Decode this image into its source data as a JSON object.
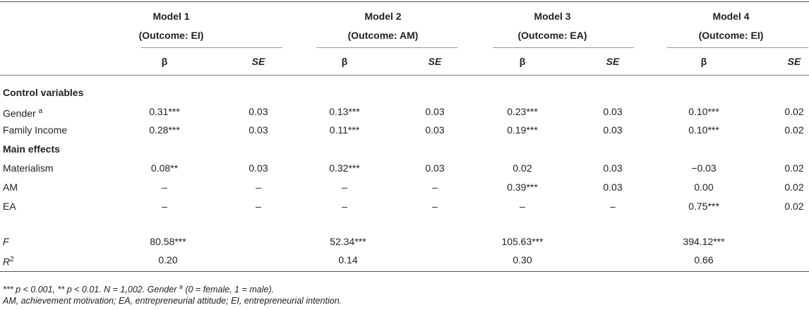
{
  "models": [
    {
      "name": "Model 1",
      "outcome": "(Outcome: EI)"
    },
    {
      "name": "Model 2",
      "outcome": "(Outcome: AM)"
    },
    {
      "name": "Model 3",
      "outcome": "(Outcome: EA)"
    },
    {
      "name": "Model 4",
      "outcome": "(Outcome: EI)"
    }
  ],
  "col_headers": {
    "beta": "β",
    "se": "SE"
  },
  "sections": {
    "control": "Control variables",
    "main": "Main effects"
  },
  "rows": {
    "gender": {
      "label_text": "Gender",
      "label_sup": "a",
      "values": [
        "0.31***",
        "0.03",
        "0.13***",
        "0.03",
        "0.23***",
        "0.03",
        "0.10***",
        "0.02"
      ]
    },
    "income": {
      "label": "Family Income",
      "values": [
        "0.28***",
        "0.03",
        "0.11***",
        "0.03",
        "0.19***",
        "0.03",
        "0.10***",
        "0.02"
      ]
    },
    "materialism": {
      "label": "Materialism",
      "values": [
        "0.08**",
        "0.03",
        "0.32***",
        "0.03",
        "0.02",
        "0.03",
        "−0.03",
        "0.02"
      ]
    },
    "am": {
      "label": "AM",
      "values": [
        "–",
        "–",
        "–",
        "–",
        "0.39***",
        "0.03",
        "0.00",
        "0.02"
      ]
    },
    "ea": {
      "label": "EA",
      "values": [
        "–",
        "–",
        "–",
        "–",
        "–",
        "–",
        "0.75***",
        "0.02"
      ]
    }
  },
  "stats": {
    "f": {
      "label": "F",
      "values": [
        "80.58***",
        "52.34***",
        "105.63***",
        "394.12***"
      ]
    },
    "r2": {
      "label": "R",
      "label_sup": "2",
      "values": [
        "0.20",
        "0.14",
        "0.30",
        "0.66"
      ]
    }
  },
  "footnotes": {
    "line1_a": "*** p < 0.001, ** p < 0.01. N = 1,002. Gender ",
    "line1_sup": "a",
    "line1_b": " (0 = female, 1 = male).",
    "line2": "AM, achievement motivation; EA, entrepreneurial attitude; EI, entrepreneurial intention."
  }
}
